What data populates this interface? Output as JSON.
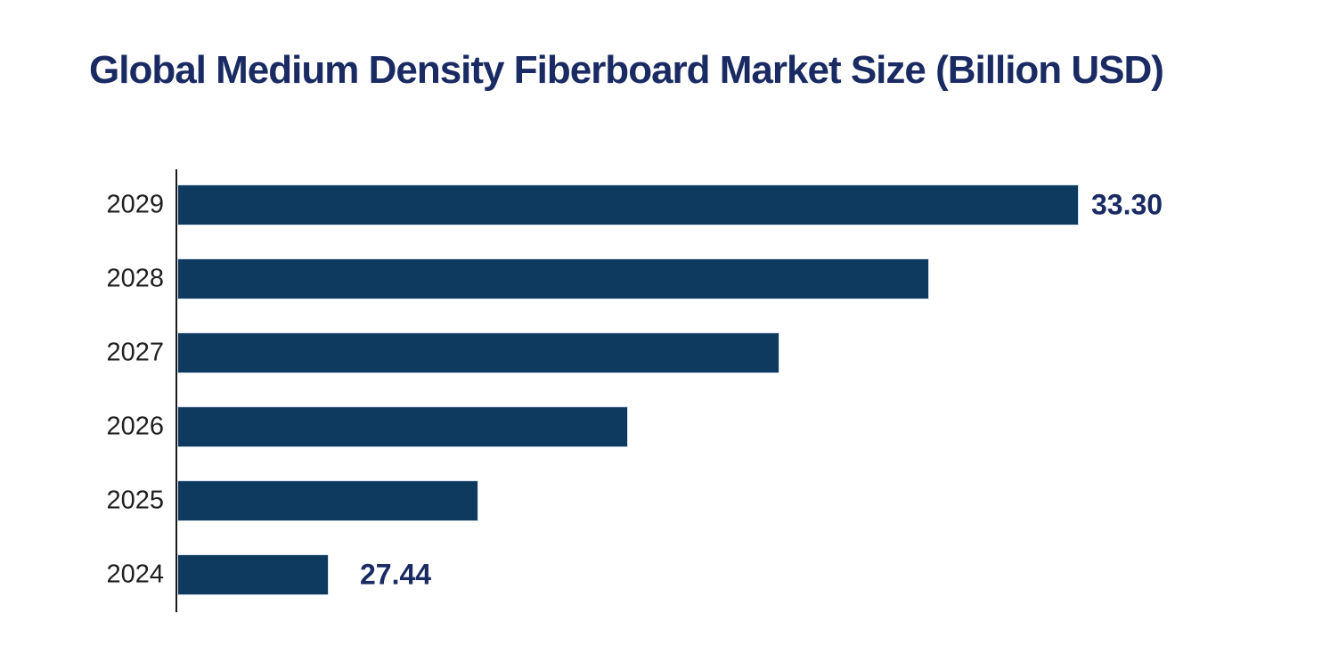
{
  "title": "Global Medium Density Fiberboard Market Size (Billion USD)",
  "chart_data": {
    "type": "bar",
    "orientation": "horizontal",
    "title": "Global Medium Density Fiberboard Market Size (Billion USD)",
    "categories": [
      "2029",
      "2028",
      "2027",
      "2026",
      "2025",
      "2024"
    ],
    "values": [
      33.3,
      32.13,
      30.96,
      29.78,
      28.61,
      27.44
    ],
    "data_labels": [
      "33.30",
      "",
      "",
      "",
      "",
      "27.44"
    ],
    "xlabel": "",
    "ylabel": "",
    "xlim": [
      26.26,
      34.76
    ],
    "grid": false,
    "legend": false,
    "axis_line": "left",
    "colors": {
      "bar_fill": "#0e3a5f",
      "bar_border": "#d9e3ef",
      "title_text": "#1a2b63",
      "value_label_text": "#1a2b63",
      "category_label_text": "#1f1f1f",
      "axis_line": "#1a1a1a",
      "background": "#ffffff"
    }
  }
}
